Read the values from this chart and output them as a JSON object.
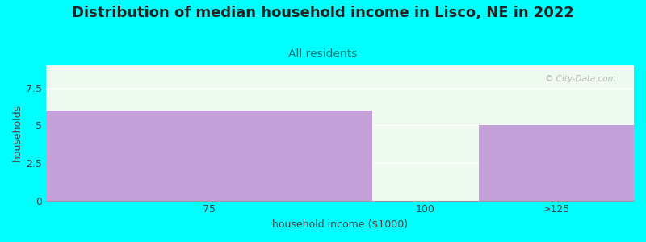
{
  "title": "Distribution of median household income in Lisco, NE in 2022",
  "subtitle": "All residents",
  "xlabel": "household income ($1000)",
  "ylabel": "households",
  "background_color": "#00FFFF",
  "plot_bg_color": "#edfaed",
  "bar_color": "#c3a0d8",
  "categories": [
    "75",
    "100",
    ">125"
  ],
  "values": [
    6,
    0,
    5
  ],
  "ylim": [
    0,
    9
  ],
  "yticks": [
    0,
    2.5,
    5,
    7.5
  ],
  "watermark": "© City-Data.com",
  "title_fontsize": 13,
  "subtitle_fontsize": 10,
  "axis_label_fontsize": 9,
  "tick_fontsize": 9,
  "title_color": "#222222",
  "subtitle_color": "#007777",
  "label_color": "#444444",
  "tick_color": "#444444",
  "bw1": 1.85,
  "bw2": 0.6,
  "bw3": 0.88
}
